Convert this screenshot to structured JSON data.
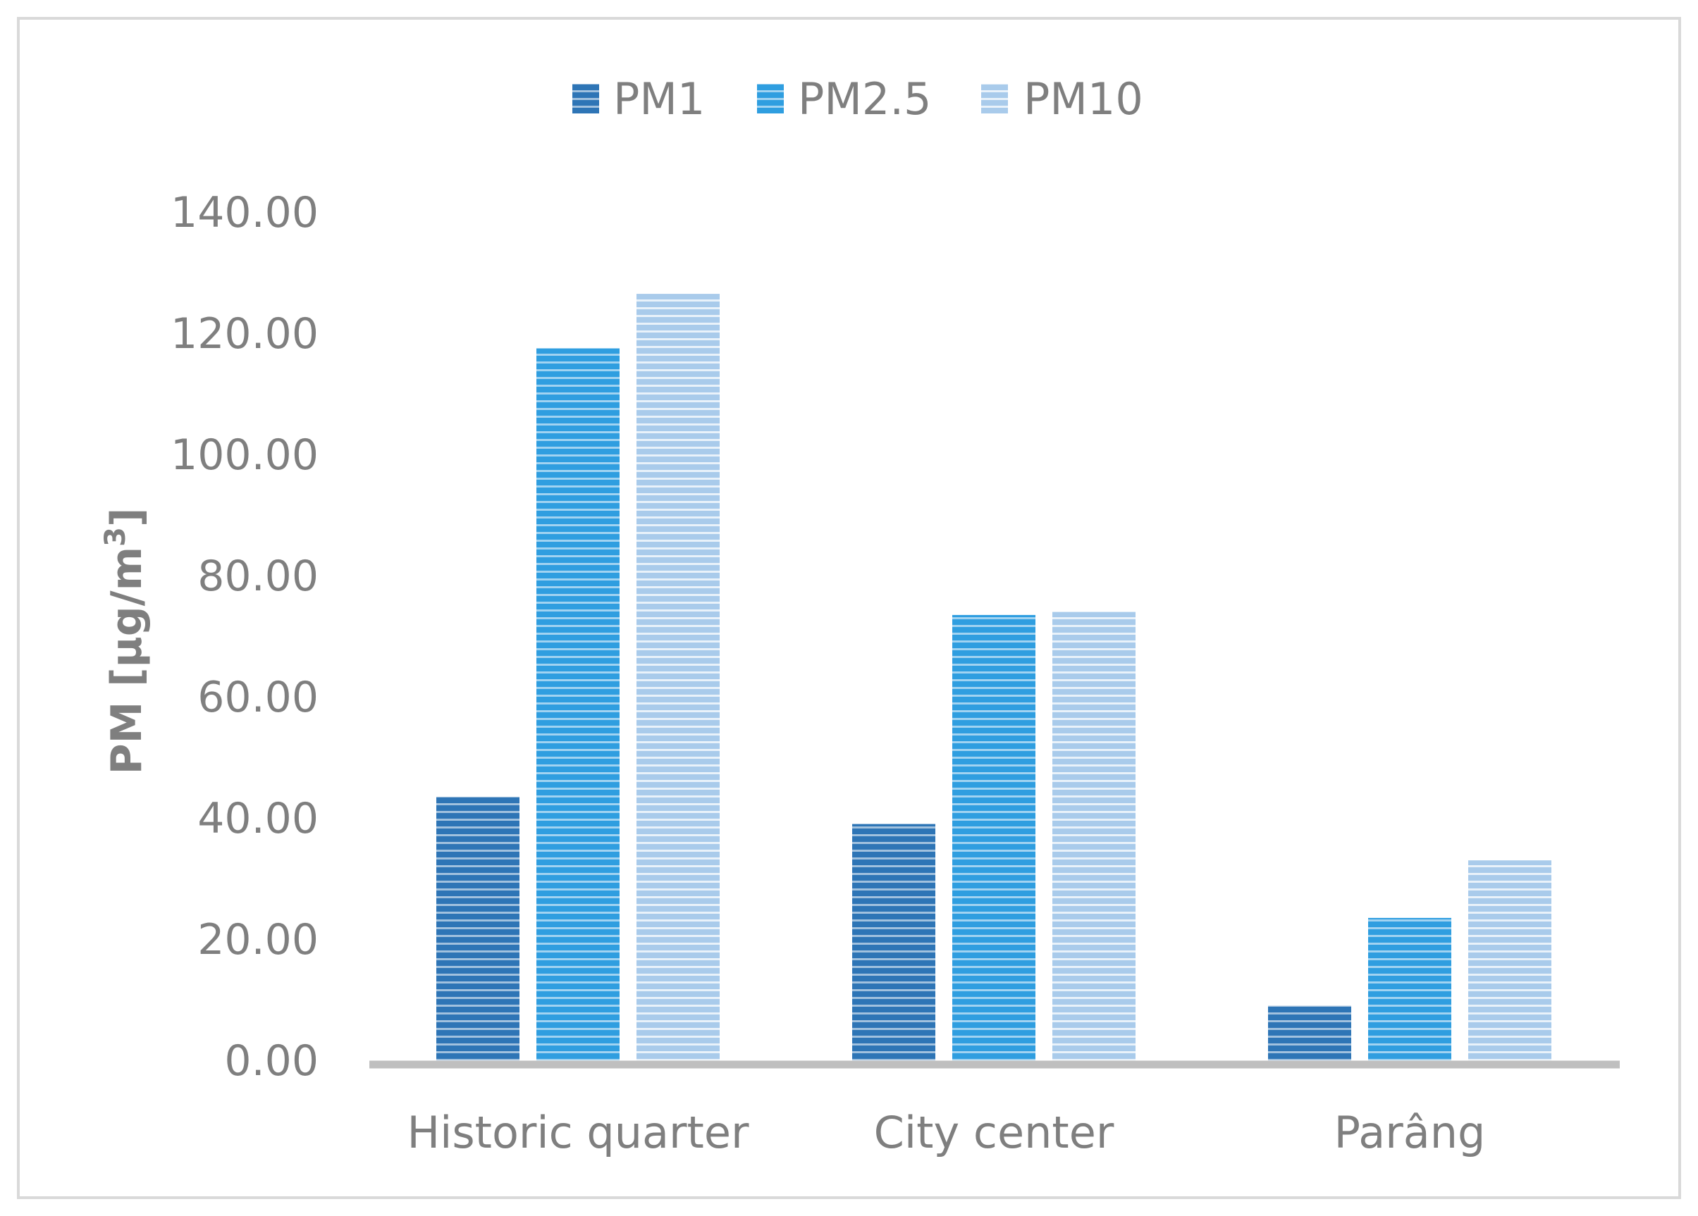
{
  "chart_data": {
    "type": "bar",
    "categories": [
      "Historic quarter",
      "City center",
      "Parâng"
    ],
    "series": [
      {
        "name": "PM1",
        "values": [
          43.5,
          39.0,
          9.0
        ],
        "color": "#2e75b6"
      },
      {
        "name": "PM2.5",
        "values": [
          117.5,
          73.5,
          23.5
        ],
        "color": "#2f9ee0"
      },
      {
        "name": "PM10",
        "values": [
          126.5,
          74.0,
          33.0
        ],
        "color": "#a9cbeb"
      }
    ],
    "ylabel_main": "PM [µg/m",
    "ylabel_sup": "3",
    "ylabel_end": "]",
    "ylim": [
      0,
      140
    ],
    "yticks": [
      "0.00",
      "20.00",
      "40.00",
      "60.00",
      "80.00",
      "100.00",
      "120.00",
      "140.00"
    ],
    "ytick_values": [
      0,
      20,
      40,
      60,
      80,
      100,
      120,
      140
    ],
    "legend_position": "top",
    "grid": false,
    "bar_pattern": "horizontal-stripes"
  }
}
